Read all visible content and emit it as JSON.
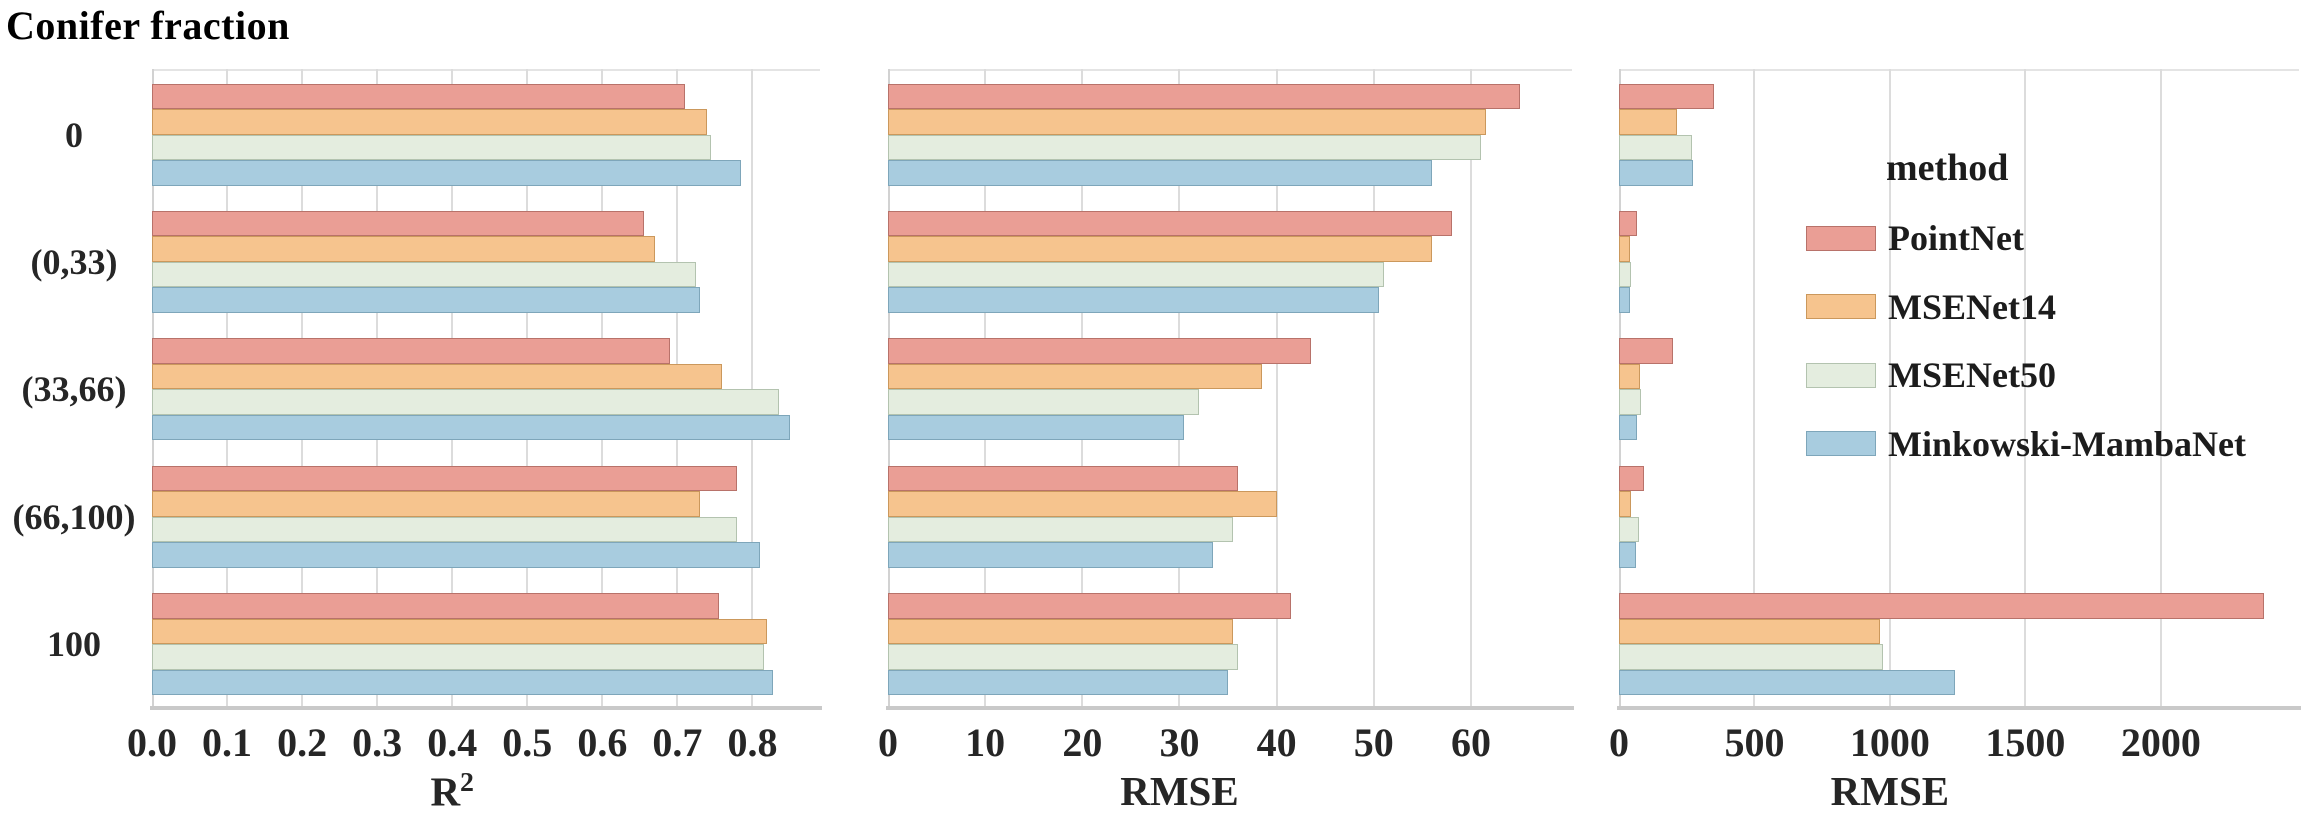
{
  "title": "Conifer fraction",
  "categories": [
    "0",
    "(0,33)",
    "(33,66)",
    "(66,100)",
    "100"
  ],
  "legend": {
    "title": "method",
    "entries": [
      "PointNet",
      "MSENet14",
      "MSENet50",
      "Minkowski-MambaNet"
    ]
  },
  "palette": {
    "PointNet": {
      "fill": "#EA9E95",
      "edge": "#B8726A"
    },
    "MSENet14": {
      "fill": "#F6C48E",
      "edge": "#CB985C"
    },
    "MSENet50": {
      "fill": "#E4EDDF",
      "edge": "#B3C3AF"
    },
    "Minkowski-MambaNet": {
      "fill": "#A8CCDF",
      "edge": "#7EA6BA"
    }
  },
  "chart_data": [
    {
      "type": "bar",
      "orientation": "horizontal",
      "title": "",
      "xlabel": "R²",
      "ylabel": "",
      "grid": "vertical",
      "legend_position": "right-inside-third-panel",
      "xlim": [
        0,
        0.89
      ],
      "tick_values": [
        0,
        0.1,
        0.2,
        0.3,
        0.4,
        0.5,
        0.6,
        0.7,
        0.8
      ],
      "tick_labels": [
        "0.0",
        "0.1",
        "0.2",
        "0.3",
        "0.4",
        "0.5",
        "0.6",
        "0.7",
        "0.8"
      ],
      "categories": [
        "0",
        "(0,33)",
        "(33,66)",
        "(66,100)",
        "100"
      ],
      "series": [
        {
          "name": "PointNet",
          "values": [
            0.71,
            0.655,
            0.69,
            0.78,
            0.755
          ]
        },
        {
          "name": "MSENet14",
          "values": [
            0.74,
            0.67,
            0.76,
            0.73,
            0.82
          ]
        },
        {
          "name": "MSENet50",
          "values": [
            0.745,
            0.725,
            0.835,
            0.78,
            0.815
          ]
        },
        {
          "name": "Minkowski-MambaNet",
          "values": [
            0.785,
            0.73,
            0.85,
            0.81,
            0.828
          ]
        }
      ]
    },
    {
      "type": "bar",
      "orientation": "horizontal",
      "title": "",
      "xlabel": "RMSE",
      "ylabel": "",
      "grid": "vertical",
      "xlim": [
        0,
        70.4
      ],
      "tick_values": [
        0,
        10,
        20,
        30,
        40,
        50,
        60
      ],
      "tick_labels": [
        "0",
        "10",
        "20",
        "30",
        "40",
        "50",
        "60"
      ],
      "categories": [
        "0",
        "(0,33)",
        "(33,66)",
        "(66,100)",
        "100"
      ],
      "series": [
        {
          "name": "PointNet",
          "values": [
            65.0,
            58.0,
            43.5,
            36.0,
            41.5
          ]
        },
        {
          "name": "MSENet14",
          "values": [
            61.5,
            56.0,
            38.5,
            40.0,
            35.5
          ]
        },
        {
          "name": "MSENet50",
          "values": [
            61.0,
            51.0,
            32.0,
            35.5,
            36.0
          ]
        },
        {
          "name": "Minkowski-MambaNet",
          "values": [
            56.0,
            50.5,
            30.5,
            33.5,
            35.0
          ]
        }
      ]
    },
    {
      "type": "bar",
      "orientation": "horizontal",
      "title": "",
      "xlabel": "RMSE",
      "ylabel": "",
      "grid": "vertical",
      "xlim": [
        0,
        2510
      ],
      "tick_values": [
        0,
        500,
        1000,
        1500,
        2000
      ],
      "tick_labels": [
        "0",
        "500",
        "1000",
        "1500",
        "2000"
      ],
      "categories": [
        "0",
        "(0,33)",
        "(33,66)",
        "(66,100)",
        "100"
      ],
      "series": [
        {
          "name": "PointNet",
          "values": [
            350,
            65,
            200,
            92,
            2380
          ]
        },
        {
          "name": "MSENet14",
          "values": [
            215,
            42,
            79,
            46,
            965
          ]
        },
        {
          "name": "MSENet50",
          "values": [
            270,
            45,
            81,
            75,
            975
          ]
        },
        {
          "name": "Minkowski-MambaNet",
          "values": [
            273,
            39,
            67,
            62,
            1240
          ]
        }
      ]
    }
  ]
}
